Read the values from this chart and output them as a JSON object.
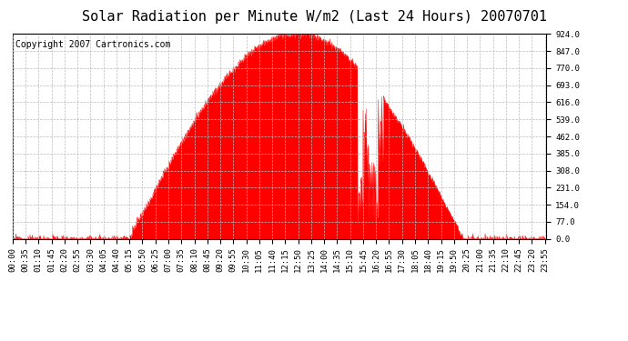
{
  "title": "Solar Radiation per Minute W/m2 (Last 24 Hours) 20070701",
  "copyright_text": "Copyright 2007 Cartronics.com",
  "y_ticks": [
    0.0,
    77.0,
    154.0,
    231.0,
    308.0,
    385.0,
    462.0,
    539.0,
    616.0,
    693.0,
    770.0,
    847.0,
    924.0
  ],
  "y_min": 0.0,
  "y_max": 924.0,
  "fill_color": "#FF0000",
  "line_color": "#FF0000",
  "dashed_line_color": "#FF0000",
  "grid_color": "#BBBBBB",
  "background_color": "#FFFFFF",
  "title_fontsize": 11,
  "copyright_fontsize": 7,
  "tick_fontsize": 6.5,
  "num_minutes": 1440,
  "x_tick_interval": 35,
  "sunrise_min": 315,
  "sunset_min": 1215,
  "peak_min": 750,
  "peak_value": 924
}
